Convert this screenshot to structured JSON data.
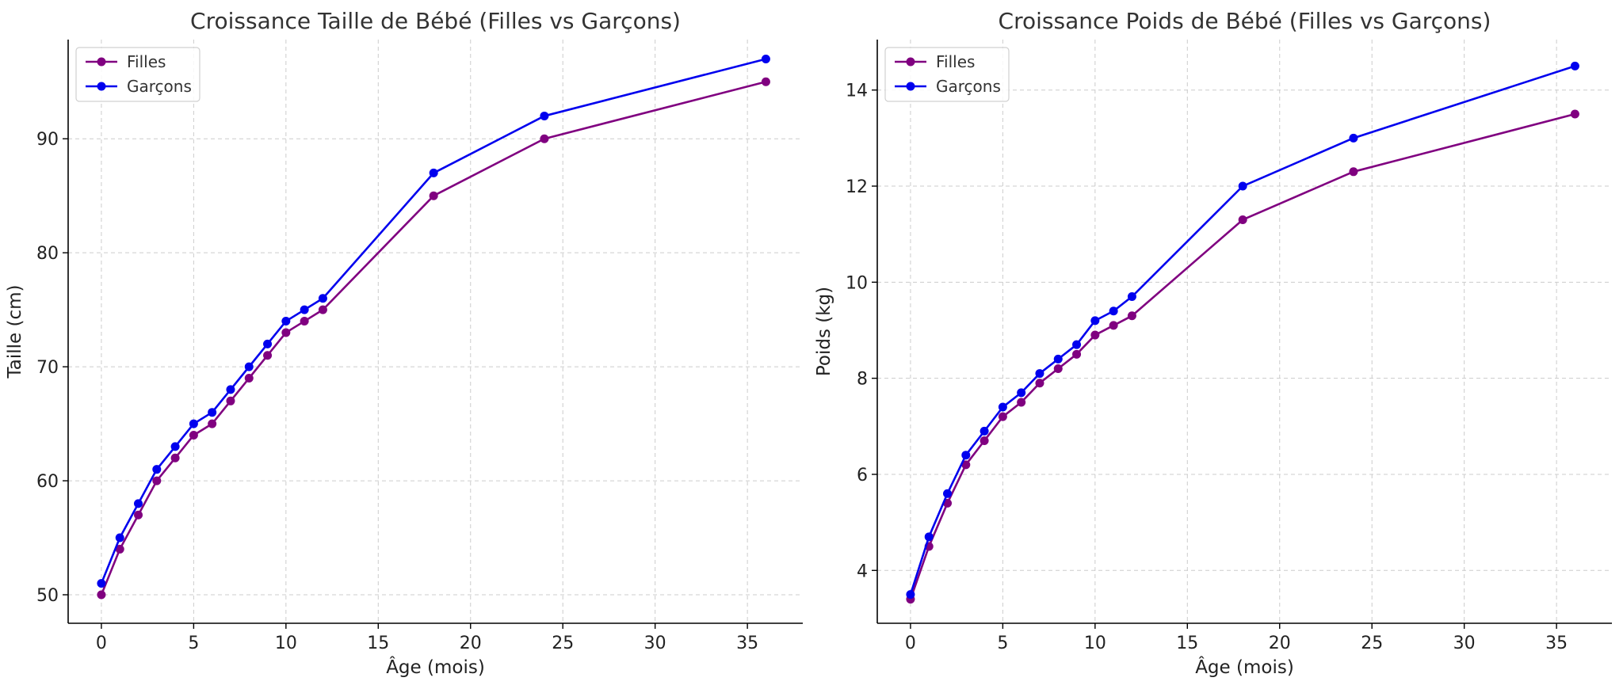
{
  "chart_data": [
    {
      "type": "line",
      "title": "Croissance Taille de Bébé (Filles vs Garçons)",
      "xlabel": "Âge (mois)",
      "ylabel": "Taille (cm)",
      "xlim": [
        -1.8,
        38
      ],
      "ylim": [
        47.5,
        98.7
      ],
      "xticks": [
        0,
        5,
        10,
        15,
        20,
        25,
        30,
        35
      ],
      "yticks": [
        50,
        60,
        70,
        80,
        90
      ],
      "grid": true,
      "legend_position": "top-left",
      "x": [
        0,
        1,
        2,
        3,
        4,
        5,
        6,
        7,
        8,
        9,
        10,
        11,
        12,
        18,
        24,
        36
      ],
      "series": [
        {
          "name": "Filles",
          "color": "#800080",
          "values": [
            50,
            54,
            57,
            60,
            62,
            64,
            65,
            67,
            69,
            71,
            73,
            74,
            75,
            85,
            90,
            95
          ]
        },
        {
          "name": "Garçons",
          "color": "#0000ee",
          "values": [
            51,
            55,
            58,
            61,
            63,
            65,
            66,
            68,
            70,
            72,
            74,
            75,
            76,
            87,
            92,
            97
          ]
        }
      ]
    },
    {
      "type": "line",
      "title": "Croissance Poids de Bébé (Filles vs Garçons)",
      "xlabel": "Âge (mois)",
      "ylabel": "Poids (kg)",
      "xlim": [
        -1.8,
        38
      ],
      "ylim": [
        2.9,
        15.05
      ],
      "xticks": [
        0,
        5,
        10,
        15,
        20,
        25,
        30,
        35
      ],
      "yticks": [
        4,
        6,
        8,
        10,
        12,
        14
      ],
      "grid": true,
      "legend_position": "top-left",
      "x": [
        0,
        1,
        2,
        3,
        4,
        5,
        6,
        7,
        8,
        9,
        10,
        11,
        12,
        18,
        24,
        36
      ],
      "series": [
        {
          "name": "Filles",
          "color": "#800080",
          "values": [
            3.4,
            4.5,
            5.4,
            6.2,
            6.7,
            7.2,
            7.5,
            7.9,
            8.2,
            8.5,
            8.9,
            9.1,
            9.3,
            11.3,
            12.3,
            13.5
          ]
        },
        {
          "name": "Garçons",
          "color": "#0000ee",
          "values": [
            3.5,
            4.7,
            5.6,
            6.4,
            6.9,
            7.4,
            7.7,
            8.1,
            8.4,
            8.7,
            9.2,
            9.4,
            9.7,
            12.0,
            13.0,
            14.5
          ]
        }
      ]
    }
  ]
}
